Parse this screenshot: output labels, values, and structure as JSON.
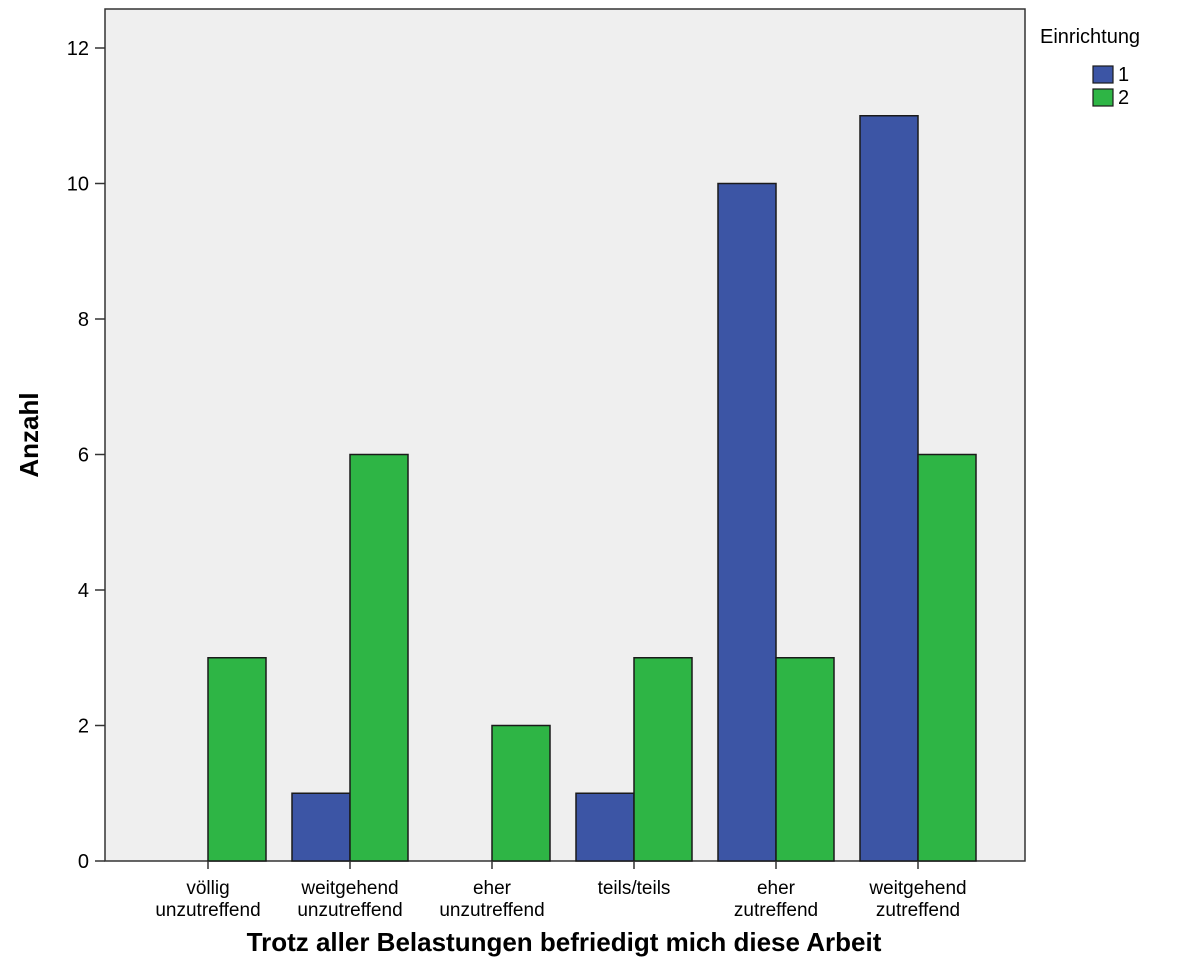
{
  "chart_data": {
    "type": "bar",
    "categories": [
      [
        "völlig",
        "unzutreffend"
      ],
      [
        "weitgehend",
        "unzutreffend"
      ],
      [
        "eher",
        "unzutreffend"
      ],
      [
        "teils/teils"
      ],
      [
        "eher",
        "zutreffend"
      ],
      [
        "weitgehend",
        "zutreffend"
      ]
    ],
    "series": [
      {
        "name": "1",
        "color": "#3c55a5",
        "values": [
          0,
          1,
          0,
          1,
          10,
          11
        ]
      },
      {
        "name": "2",
        "color": "#2eb545",
        "values": [
          3,
          6,
          2,
          3,
          3,
          6
        ]
      }
    ],
    "xlabel": "Trotz aller Belastungen befriedigt mich diese Arbeit",
    "ylabel": "Anzahl",
    "ylim": [
      0,
      12.5
    ],
    "yticks": [
      0,
      2,
      4,
      6,
      8,
      10,
      12
    ],
    "legend": {
      "title": "Einrichtung",
      "placement": "top-right outside"
    },
    "plot_background": "#efefef",
    "grid": false
  }
}
